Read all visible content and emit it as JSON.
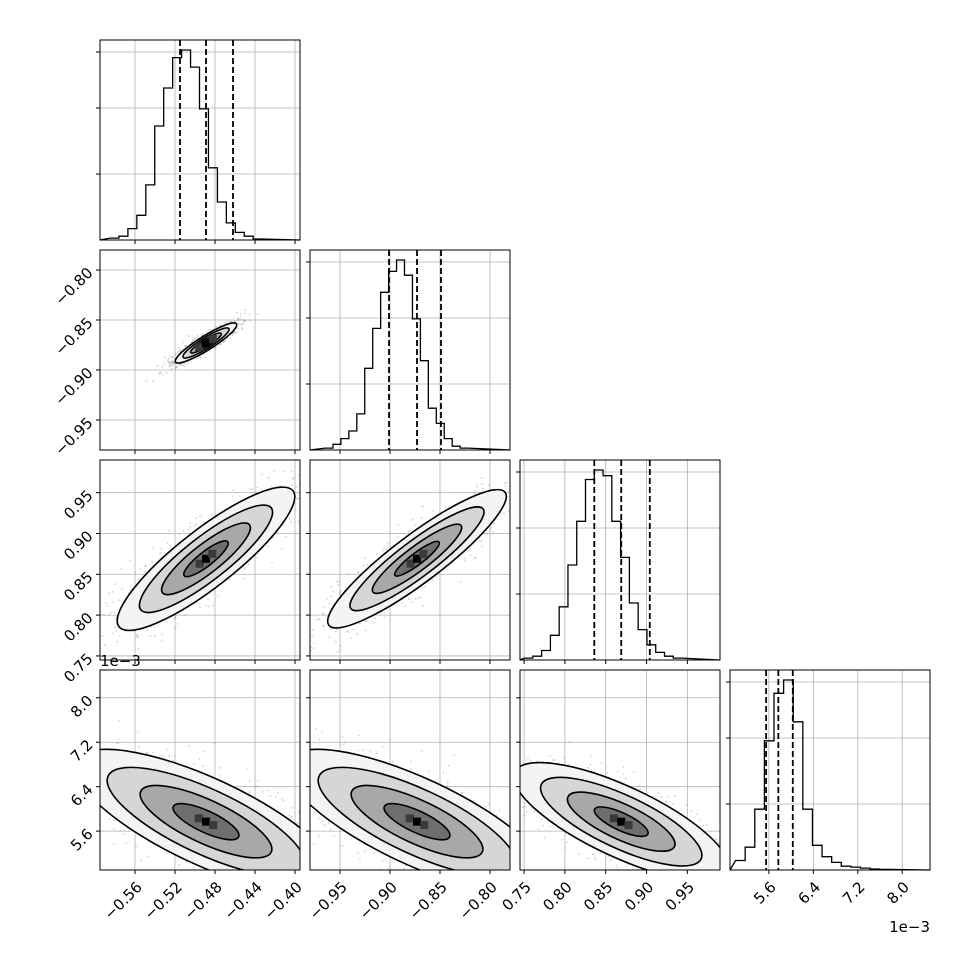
{
  "chart_data": {
    "type": "corner",
    "parameters": [
      {
        "range": [
          -0.595,
          -0.395
        ],
        "ticks": [
          -0.56,
          -0.52,
          -0.48,
          -0.44,
          -0.4
        ],
        "tick_labels": [
          "−0.56",
          "−0.52",
          "−0.48",
          "−0.44",
          "−0.40"
        ],
        "quantiles": [
          -0.515,
          -0.489,
          -0.462
        ],
        "offset_label": "",
        "hist": {
          "start": -0.585,
          "width": 0.00895,
          "counts": [
            0.01,
            0.02,
            0.06,
            0.13,
            0.29,
            0.6,
            0.8,
            0.96,
            1.0,
            0.91,
            0.69,
            0.38,
            0.2,
            0.09,
            0.04,
            0.02,
            0.005
          ]
        },
        "hist_grid": [
          0.33,
          0.66,
          0.94
        ]
      },
      {
        "range": [
          -0.98,
          -0.78
        ],
        "ticks": [
          -0.95,
          -0.9,
          -0.85,
          -0.8
        ],
        "tick_labels": [
          "−0.95",
          "−0.90",
          "−0.85",
          "−0.80"
        ],
        "quantiles": [
          -0.901,
          -0.873,
          -0.849
        ],
        "offset_label": "",
        "hist": {
          "start": -0.965,
          "width": 0.00795,
          "counts": [
            0.01,
            0.03,
            0.06,
            0.1,
            0.19,
            0.43,
            0.64,
            0.83,
            0.94,
            1.0,
            0.92,
            0.69,
            0.47,
            0.22,
            0.14,
            0.06,
            0.02,
            0.01
          ]
        },
        "hist_grid": [
          0.33,
          0.66,
          0.94
        ]
      },
      {
        "range": [
          0.745,
          0.99
        ],
        "ticks": [
          0.75,
          0.8,
          0.85,
          0.9,
          0.95
        ],
        "tick_labels": [
          "0.75",
          "0.80",
          "0.85",
          "0.90",
          "0.95"
        ],
        "quantiles": [
          0.836,
          0.869,
          0.904
        ],
        "offset_label": "",
        "hist": {
          "start": 0.75,
          "width": 0.01075,
          "counts": [
            0.01,
            0.02,
            0.05,
            0.13,
            0.28,
            0.5,
            0.73,
            0.95,
            1.0,
            0.97,
            0.73,
            0.54,
            0.3,
            0.16,
            0.08,
            0.04,
            0.02,
            0.01
          ]
        },
        "hist_grid": [
          0.33,
          0.66,
          0.94
        ]
      },
      {
        "range": [
          0.0049,
          0.0085
        ],
        "ticks": [
          0.0056,
          0.0064,
          0.0072,
          0.008
        ],
        "tick_labels": [
          "5.6",
          "6.4",
          "7.2",
          "8.0"
        ],
        "quantiles": [
          0.00555,
          0.00577,
          0.00603
        ],
        "offset_label": "1e−3",
        "hist": {
          "start": 0.005,
          "width": 0.000173,
          "counts": [
            0.05,
            0.12,
            0.32,
            0.68,
            0.93,
            1.0,
            0.78,
            0.32,
            0.13,
            0.07,
            0.04,
            0.02,
            0.015,
            0.01,
            0.005,
            0.003
          ]
        },
        "hist_grid": [
          0.33,
          0.66,
          0.94
        ]
      }
    ],
    "pairs": [
      {
        "row": 1,
        "col": 0,
        "rx": 0.015,
        "ry": 0.003,
        "theta_deg": 32,
        "scatter": [
          [
            0.05,
            0.12,
            0.28,
            0.55,
            0.28,
            0.12,
            0.05
          ],
          [
            0.04,
            0.15,
            0.35,
            0.55,
            0.35,
            0.15,
            0.04
          ]
        ]
      },
      {
        "row": 2,
        "col": 0,
        "rx": 0.046,
        "ry": 0.012,
        "theta_deg": 38
      },
      {
        "row": 2,
        "col": 1,
        "rx": 0.046,
        "ry": 0.01,
        "theta_deg": 37
      },
      {
        "row": 3,
        "col": 0,
        "rx": 0.06,
        "ry": 0.018,
        "theta_deg": -25
      },
      {
        "row": 3,
        "col": 1,
        "rx": 0.06,
        "ry": 0.018,
        "theta_deg": -25
      },
      {
        "row": 3,
        "col": 2,
        "rx": 0.06,
        "ry": 0.018,
        "theta_deg": -25
      }
    ],
    "contour_levels_sigma": [
      0.5,
      1.0,
      1.5,
      2.0
    ],
    "colors": {
      "line": "#000000",
      "grid": "#b0b0b0",
      "scatter": "#808080"
    }
  }
}
